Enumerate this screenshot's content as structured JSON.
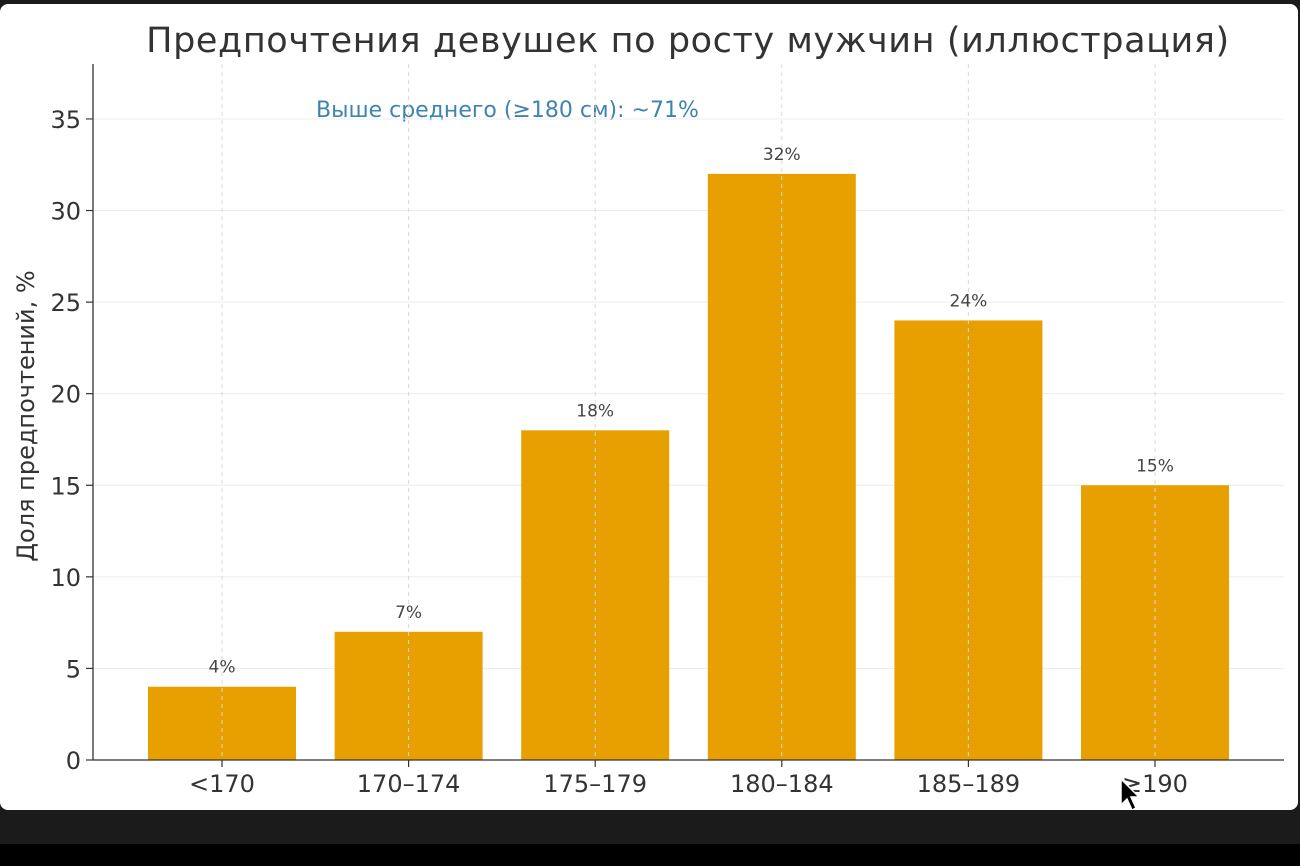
{
  "colors": {
    "bar": "#E7A000",
    "annotation": "#3E84B0",
    "grid": "#D8D8D8",
    "axis": "#333333"
  },
  "chart_data": {
    "type": "bar",
    "title": "Предпочтения девушек по росту мужчин (иллюстрация)",
    "xlabel": "",
    "ylabel": "Доля предпочтений, %",
    "categories": [
      "<170",
      "170–174",
      "175–179",
      "180–184",
      "185–189",
      "≥190"
    ],
    "values": [
      4,
      7,
      18,
      32,
      24,
      15
    ],
    "value_labels": [
      "4%",
      "7%",
      "18%",
      "32%",
      "24%",
      "15%"
    ],
    "ylim": [
      0,
      38
    ],
    "yticks": [
      0,
      5,
      10,
      15,
      20,
      25,
      30,
      35
    ],
    "grid": true,
    "annotation": "Выше среднего (≥180 см): ~71%"
  },
  "cursor": {
    "icon": "mouse-pointer-icon"
  }
}
